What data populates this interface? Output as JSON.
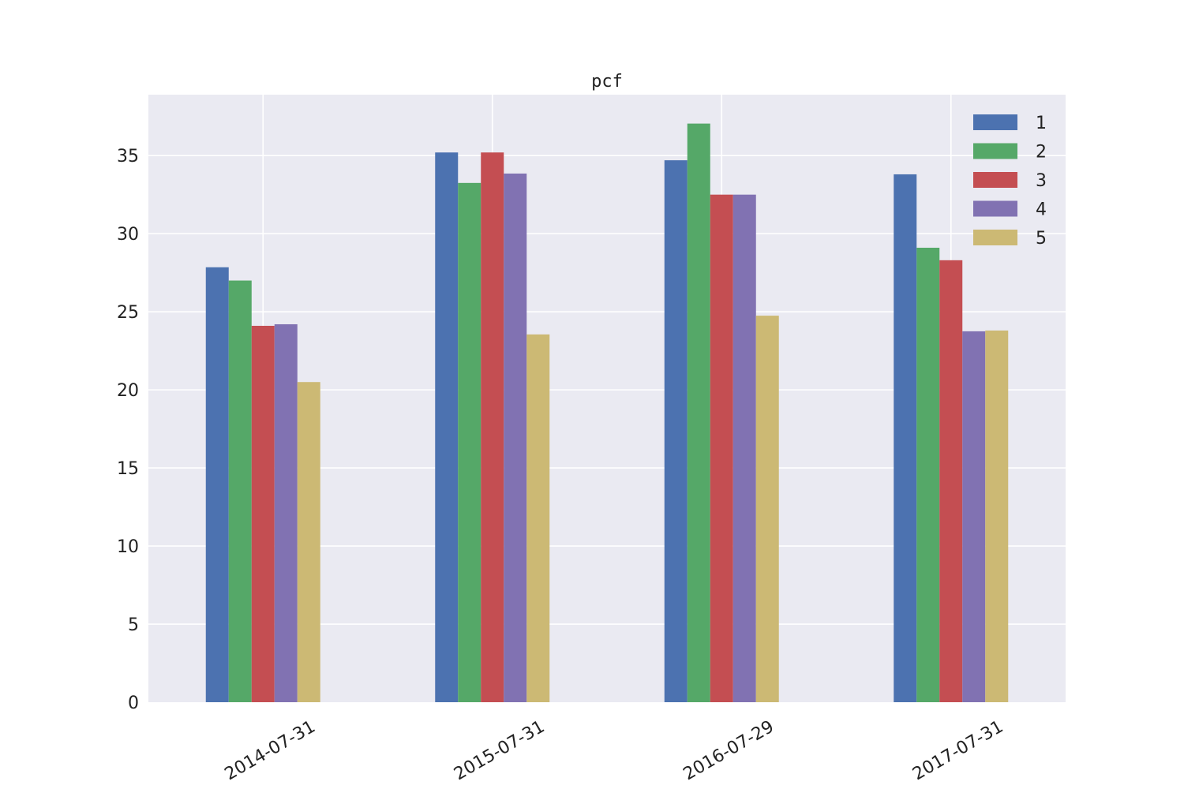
{
  "chart_data": {
    "type": "bar",
    "title": "pcf",
    "xlabel": "",
    "ylabel": "",
    "categories": [
      "2014-07-31",
      "2015-07-31",
      "2016-07-29",
      "2017-07-31"
    ],
    "series": [
      {
        "name": "1",
        "values": [
          27.85,
          35.2,
          34.7,
          33.8
        ]
      },
      {
        "name": "2",
        "values": [
          27.0,
          33.25,
          37.05,
          29.1
        ]
      },
      {
        "name": "3",
        "values": [
          24.1,
          35.2,
          32.5,
          28.3
        ]
      },
      {
        "name": "4",
        "values": [
          24.2,
          33.85,
          32.5,
          23.75
        ]
      },
      {
        "name": "5",
        "values": [
          20.5,
          23.55,
          24.75,
          23.8
        ]
      }
    ],
    "ylim": [
      0,
      38.9
    ],
    "yticks": [
      0,
      5,
      10,
      15,
      20,
      25,
      30,
      35
    ],
    "grid": true,
    "legend_position": "top-right",
    "colors": [
      "#4c72b0",
      "#55a868",
      "#c44e52",
      "#8172b2",
      "#ccb974"
    ],
    "background": "#eaeaf2",
    "grid_color": "#ffffff"
  }
}
